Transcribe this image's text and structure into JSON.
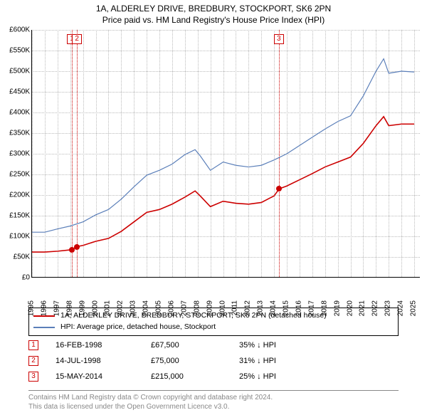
{
  "title_line1": "1A, ALDERLEY DRIVE, BREDBURY, STOCKPORT, SK6 2PN",
  "title_line2": "Price paid vs. HM Land Registry's House Price Index (HPI)",
  "chart": {
    "type": "line",
    "x_min": 1995,
    "x_max": 2025.5,
    "y_min": 0,
    "y_max": 600000,
    "ytick_step": 50000,
    "yticks": [
      "£0",
      "£50K",
      "£100K",
      "£150K",
      "£200K",
      "£250K",
      "£300K",
      "£350K",
      "£400K",
      "£450K",
      "£500K",
      "£550K",
      "£600K"
    ],
    "xticks": [
      1995,
      1996,
      1997,
      1998,
      1999,
      2000,
      2001,
      2002,
      2003,
      2004,
      2005,
      2006,
      2007,
      2008,
      2009,
      2010,
      2011,
      2012,
      2013,
      2014,
      2015,
      2016,
      2017,
      2018,
      2019,
      2020,
      2021,
      2022,
      2023,
      2024,
      2025
    ],
    "grid_color": "#bbbbbb",
    "background_color": "#ffffff",
    "series": [
      {
        "name": "hpi",
        "label": "HPI: Average price, detached house, Stockport",
        "color": "#5b7fb9",
        "width": 1.2,
        "data": [
          [
            1995,
            110000
          ],
          [
            1996,
            110000
          ],
          [
            1997,
            118000
          ],
          [
            1998,
            125000
          ],
          [
            1999,
            135000
          ],
          [
            2000,
            152000
          ],
          [
            2001,
            165000
          ],
          [
            2002,
            190000
          ],
          [
            2003,
            220000
          ],
          [
            2004,
            248000
          ],
          [
            2005,
            260000
          ],
          [
            2006,
            275000
          ],
          [
            2007,
            298000
          ],
          [
            2007.8,
            310000
          ],
          [
            2008.2,
            295000
          ],
          [
            2009,
            260000
          ],
          [
            2010,
            280000
          ],
          [
            2011,
            272000
          ],
          [
            2012,
            268000
          ],
          [
            2013,
            272000
          ],
          [
            2014,
            285000
          ],
          [
            2015,
            300000
          ],
          [
            2016,
            320000
          ],
          [
            2017,
            340000
          ],
          [
            2018,
            360000
          ],
          [
            2019,
            378000
          ],
          [
            2020,
            392000
          ],
          [
            2021,
            440000
          ],
          [
            2022,
            500000
          ],
          [
            2022.6,
            530000
          ],
          [
            2023,
            495000
          ],
          [
            2024,
            500000
          ],
          [
            2025,
            498000
          ]
        ]
      },
      {
        "name": "property",
        "label": "1A, ALDERLEY DRIVE, BREDBURY, STOCKPORT, SK6 2PN (detached house)",
        "color": "#cc0000",
        "width": 1.6,
        "data": [
          [
            1995,
            62000
          ],
          [
            1996,
            62000
          ],
          [
            1997,
            64000
          ],
          [
            1998.1,
            67500
          ],
          [
            1998.5,
            75000
          ],
          [
            1999,
            78000
          ],
          [
            2000,
            88000
          ],
          [
            2001,
            95000
          ],
          [
            2002,
            112000
          ],
          [
            2003,
            135000
          ],
          [
            2004,
            158000
          ],
          [
            2005,
            165000
          ],
          [
            2006,
            178000
          ],
          [
            2007,
            195000
          ],
          [
            2007.8,
            210000
          ],
          [
            2008.2,
            198000
          ],
          [
            2009,
            172000
          ],
          [
            2010,
            185000
          ],
          [
            2011,
            180000
          ],
          [
            2012,
            178000
          ],
          [
            2013,
            182000
          ],
          [
            2014,
            198000
          ],
          [
            2014.4,
            215000
          ],
          [
            2015,
            222000
          ],
          [
            2016,
            237000
          ],
          [
            2017,
            252000
          ],
          [
            2018,
            268000
          ],
          [
            2019,
            280000
          ],
          [
            2020,
            292000
          ],
          [
            2021,
            325000
          ],
          [
            2022,
            368000
          ],
          [
            2022.6,
            390000
          ],
          [
            2023,
            368000
          ],
          [
            2024,
            372000
          ],
          [
            2025,
            372000
          ]
        ]
      }
    ],
    "markers": [
      {
        "n": "1",
        "x": 1998.13,
        "color": "#cc0000",
        "point_y": 67500
      },
      {
        "n": "2",
        "x": 1998.53,
        "color": "#cc0000",
        "point_y": 75000
      },
      {
        "n": "3",
        "x": 2014.37,
        "color": "#cc0000",
        "point_y": 215000
      }
    ]
  },
  "legend": {
    "items": [
      {
        "color": "#cc0000",
        "label": "1A, ALDERLEY DRIVE, BREDBURY, STOCKPORT, SK6 2PN (detached house)"
      },
      {
        "color": "#5b7fb9",
        "label": "HPI: Average price, detached house, Stockport"
      }
    ]
  },
  "transactions": [
    {
      "n": "1",
      "date": "16-FEB-1998",
      "price": "£67,500",
      "diff": "35% ↓ HPI"
    },
    {
      "n": "2",
      "date": "14-JUL-1998",
      "price": "£75,000",
      "diff": "31% ↓ HPI"
    },
    {
      "n": "3",
      "date": "15-MAY-2014",
      "price": "£215,000",
      "diff": "25% ↓ HPI"
    }
  ],
  "footer": {
    "line1": "Contains HM Land Registry data © Crown copyright and database right 2024.",
    "line2": "This data is licensed under the Open Government Licence v3.0."
  }
}
